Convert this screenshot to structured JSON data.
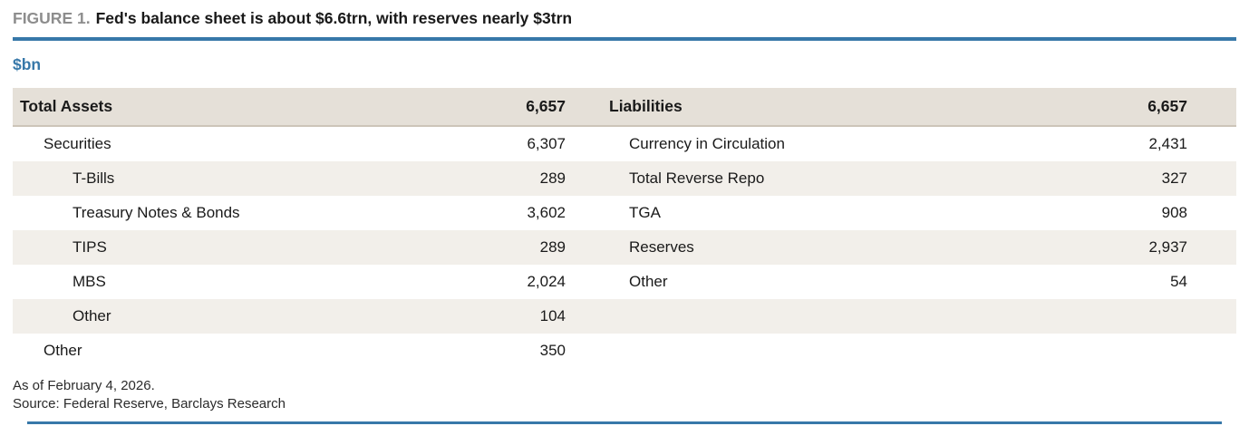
{
  "figure": {
    "label": "FIGURE 1.",
    "title": "Fed's balance sheet is about $6.6trn, with reserves nearly $3trn",
    "unit": "$bn"
  },
  "table": {
    "rows": [
      {
        "variant": "header",
        "left": {
          "label": "Total Assets",
          "value": "6,657",
          "level": 0
        },
        "right": {
          "label": "Liabilities",
          "value": "6,657",
          "level": 0
        }
      },
      {
        "variant": "plain",
        "left": {
          "label": "Securities",
          "value": "6,307",
          "level": 1
        },
        "right": {
          "label": "Currency in Circulation",
          "value": "2,431",
          "level": 1
        }
      },
      {
        "variant": "shaded",
        "left": {
          "label": "T-Bills",
          "value": "289",
          "level": 2
        },
        "right": {
          "label": "Total Reverse Repo",
          "value": "327",
          "level": 1
        }
      },
      {
        "variant": "plain",
        "left": {
          "label": "Treasury Notes & Bonds",
          "value": "3,602",
          "level": 2
        },
        "right": {
          "label": "TGA",
          "value": "908",
          "level": 1
        }
      },
      {
        "variant": "shaded",
        "left": {
          "label": "TIPS",
          "value": "289",
          "level": 2
        },
        "right": {
          "label": "Reserves",
          "value": "2,937",
          "level": 1
        }
      },
      {
        "variant": "plain",
        "left": {
          "label": "MBS",
          "value": "2,024",
          "level": 2
        },
        "right": {
          "label": "Other",
          "value": "54",
          "level": 1
        }
      },
      {
        "variant": "shaded",
        "left": {
          "label": "Other",
          "value": "104",
          "level": 2
        },
        "right": {
          "label": "",
          "value": "",
          "level": 1
        }
      },
      {
        "variant": "plain",
        "left": {
          "label": "Other",
          "value": "350",
          "level": 1
        },
        "right": {
          "label": "",
          "value": "",
          "level": 1
        }
      }
    ]
  },
  "footer": {
    "as_of": "As of February 4, 2026.",
    "source": "Source: Federal Reserve, Barclays Research"
  },
  "colors": {
    "accent_blue": "#3778A9",
    "header_row_bg": "#E5E0D8",
    "shaded_row_bg": "#F2EFEA",
    "figure_label_gray": "#8D8D8D",
    "text": "#1A1A1A"
  }
}
